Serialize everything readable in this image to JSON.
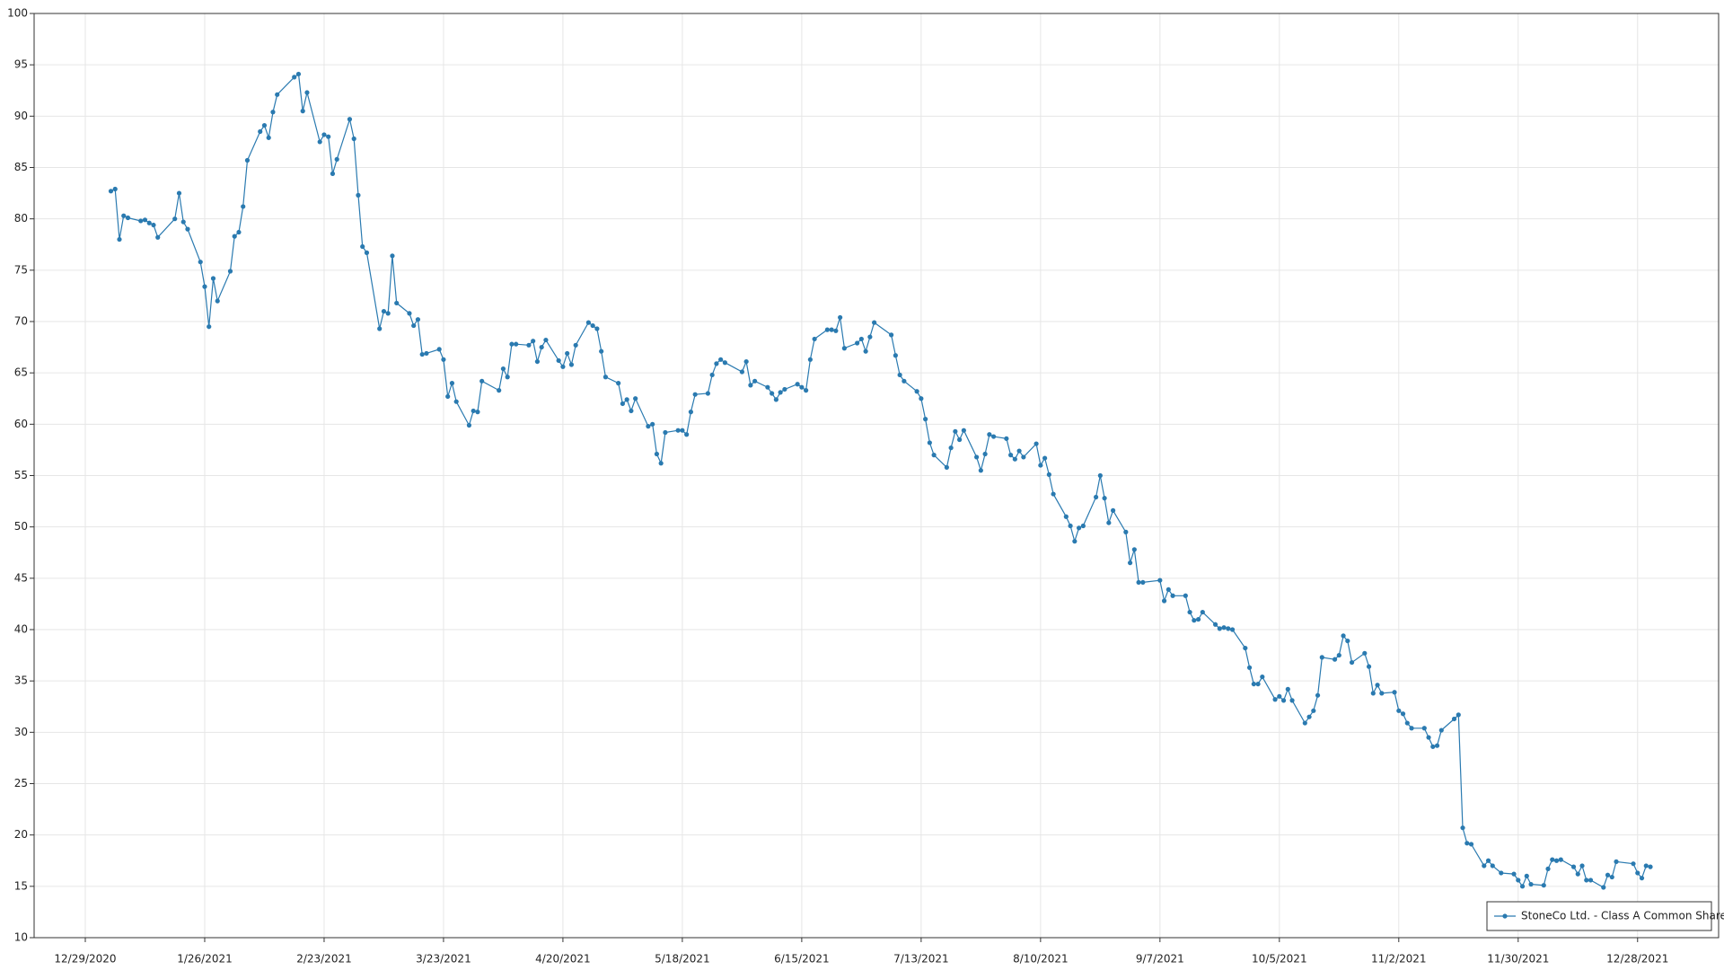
{
  "chart_data": {
    "type": "line",
    "series": [
      {
        "name": "StoneCo Ltd. - Class A Common Share",
        "color": "#2a7ab0",
        "values": [
          82.7,
          82.9,
          78.0,
          80.3,
          80.1,
          79.8,
          79.9,
          79.6,
          79.4,
          78.2,
          80.0,
          82.5,
          79.7,
          79.0,
          75.8,
          73.4,
          69.5,
          74.2,
          72.0,
          74.9,
          78.3,
          78.7,
          81.2,
          85.7,
          88.5,
          89.1,
          87.9,
          90.4,
          92.1,
          93.8,
          94.1,
          90.5,
          92.3,
          87.5,
          88.2,
          88.0,
          84.4,
          85.8,
          89.7,
          87.8,
          82.3,
          77.3,
          76.7,
          69.3,
          71.0,
          70.8,
          76.4,
          71.8,
          70.8,
          69.6,
          70.2,
          66.8,
          66.9,
          67.3,
          66.3,
          62.7,
          64.0,
          62.2,
          59.9,
          61.3,
          61.2,
          64.2,
          63.3,
          65.4,
          64.6,
          67.8,
          67.8,
          67.7,
          68.1,
          66.1,
          67.5,
          68.2,
          66.2,
          65.6,
          66.9,
          65.8,
          67.7,
          69.9,
          69.6,
          69.3,
          67.1,
          64.6,
          64.0,
          62.0,
          62.4,
          61.3,
          62.5,
          59.8,
          60.0,
          57.1,
          56.2,
          59.2,
          59.4,
          59.4,
          59.0,
          61.2,
          62.9,
          63.0,
          64.8,
          65.9,
          66.3,
          66.0,
          65.1,
          66.1,
          63.8,
          64.2,
          63.6,
          63.0,
          62.4,
          63.1,
          63.4,
          63.9,
          63.6,
          63.3,
          66.3,
          68.3,
          69.2,
          69.2,
          69.1,
          70.4,
          67.4,
          67.9,
          68.3,
          67.1,
          68.5,
          69.9,
          68.7,
          66.7,
          64.8,
          64.2,
          63.2,
          62.5,
          60.5,
          58.2,
          57.0,
          55.8,
          57.7,
          59.3,
          58.5,
          59.4,
          56.8,
          55.5,
          57.1,
          59.0,
          58.8,
          58.6,
          57.0,
          56.6,
          57.4,
          56.8,
          58.1,
          56.0,
          56.7,
          55.1,
          53.2,
          51.0,
          50.1,
          48.6,
          49.9,
          50.1,
          52.9,
          55.0,
          52.8,
          50.4,
          51.6,
          49.5,
          46.5,
          47.8,
          44.6,
          44.6,
          44.8,
          42.8,
          43.9,
          43.3,
          43.3,
          41.7,
          40.9,
          41.0,
          41.7,
          40.5,
          40.1,
          40.2,
          40.1,
          40.0,
          38.2,
          36.3,
          34.7,
          34.7,
          35.4,
          33.2,
          33.5,
          33.1,
          34.2,
          33.1,
          30.9,
          31.5,
          32.1,
          33.6,
          37.3,
          37.1,
          37.5,
          39.4,
          38.9,
          36.8,
          37.7,
          36.4,
          33.8,
          34.6,
          33.8,
          33.9,
          32.1,
          31.8,
          30.9,
          30.4,
          30.4,
          29.5,
          28.6,
          28.7,
          30.2,
          31.3,
          31.7,
          20.7,
          19.2,
          19.1,
          17.0,
          17.5,
          17.0,
          16.3,
          16.2,
          15.6,
          15.0,
          16.0,
          15.2,
          15.1,
          16.7,
          17.6,
          17.5,
          17.6,
          16.9,
          16.2,
          17.0,
          15.6,
          15.6,
          14.9,
          16.1,
          15.9,
          17.4,
          17.2,
          16.3,
          15.8,
          17.0,
          16.9
        ]
      }
    ],
    "x": [
      "1/4/2021",
      "1/5/2021",
      "1/6/2021",
      "1/7/2021",
      "1/8/2021",
      "1/11/2021",
      "1/12/2021",
      "1/13/2021",
      "1/14/2021",
      "1/15/2021",
      "1/19/2021",
      "1/20/2021",
      "1/21/2021",
      "1/22/2021",
      "1/25/2021",
      "1/26/2021",
      "1/27/2021",
      "1/28/2021",
      "1/29/2021",
      "2/1/2021",
      "2/2/2021",
      "2/3/2021",
      "2/4/2021",
      "2/5/2021",
      "2/8/2021",
      "2/9/2021",
      "2/10/2021",
      "2/11/2021",
      "2/12/2021",
      "2/16/2021",
      "2/17/2021",
      "2/18/2021",
      "2/19/2021",
      "2/22/2021",
      "2/23/2021",
      "2/24/2021",
      "2/25/2021",
      "2/26/2021",
      "3/1/2021",
      "3/2/2021",
      "3/3/2021",
      "3/4/2021",
      "3/5/2021",
      "3/8/2021",
      "3/9/2021",
      "3/10/2021",
      "3/11/2021",
      "3/12/2021",
      "3/15/2021",
      "3/16/2021",
      "3/17/2021",
      "3/18/2021",
      "3/19/2021",
      "3/22/2021",
      "3/23/2021",
      "3/24/2021",
      "3/25/2021",
      "3/26/2021",
      "3/29/2021",
      "3/30/2021",
      "3/31/2021",
      "4/1/2021",
      "4/5/2021",
      "4/6/2021",
      "4/7/2021",
      "4/8/2021",
      "4/9/2021",
      "4/12/2021",
      "4/13/2021",
      "4/14/2021",
      "4/15/2021",
      "4/16/2021",
      "4/19/2021",
      "4/20/2021",
      "4/21/2021",
      "4/22/2021",
      "4/23/2021",
      "4/26/2021",
      "4/27/2021",
      "4/28/2021",
      "4/29/2021",
      "4/30/2021",
      "5/3/2021",
      "5/4/2021",
      "5/5/2021",
      "5/6/2021",
      "5/7/2021",
      "5/10/2021",
      "5/11/2021",
      "5/12/2021",
      "5/13/2021",
      "5/14/2021",
      "5/17/2021",
      "5/18/2021",
      "5/19/2021",
      "5/20/2021",
      "5/21/2021",
      "5/24/2021",
      "5/25/2021",
      "5/26/2021",
      "5/27/2021",
      "5/28/2021",
      "6/1/2021",
      "6/2/2021",
      "6/3/2021",
      "6/4/2021",
      "6/7/2021",
      "6/8/2021",
      "6/9/2021",
      "6/10/2021",
      "6/11/2021",
      "6/14/2021",
      "6/15/2021",
      "6/16/2021",
      "6/17/2021",
      "6/18/2021",
      "6/21/2021",
      "6/22/2021",
      "6/23/2021",
      "6/24/2021",
      "6/25/2021",
      "6/28/2021",
      "6/29/2021",
      "6/30/2021",
      "7/1/2021",
      "7/2/2021",
      "7/6/2021",
      "7/7/2021",
      "7/8/2021",
      "7/9/2021",
      "7/12/2021",
      "7/13/2021",
      "7/14/2021",
      "7/15/2021",
      "7/16/2021",
      "7/19/2021",
      "7/20/2021",
      "7/21/2021",
      "7/22/2021",
      "7/23/2021",
      "7/26/2021",
      "7/27/2021",
      "7/28/2021",
      "7/29/2021",
      "7/30/2021",
      "8/2/2021",
      "8/3/2021",
      "8/4/2021",
      "8/5/2021",
      "8/6/2021",
      "8/9/2021",
      "8/10/2021",
      "8/11/2021",
      "8/12/2021",
      "8/13/2021",
      "8/16/2021",
      "8/17/2021",
      "8/18/2021",
      "8/19/2021",
      "8/20/2021",
      "8/23/2021",
      "8/24/2021",
      "8/25/2021",
      "8/26/2021",
      "8/27/2021",
      "8/30/2021",
      "8/31/2021",
      "9/1/2021",
      "9/2/2021",
      "9/3/2021",
      "9/7/2021",
      "9/8/2021",
      "9/9/2021",
      "9/10/2021",
      "9/13/2021",
      "9/14/2021",
      "9/15/2021",
      "9/16/2021",
      "9/17/2021",
      "9/20/2021",
      "9/21/2021",
      "9/22/2021",
      "9/23/2021",
      "9/24/2021",
      "9/27/2021",
      "9/28/2021",
      "9/29/2021",
      "9/30/2021",
      "10/1/2021",
      "10/4/2021",
      "10/5/2021",
      "10/6/2021",
      "10/7/2021",
      "10/8/2021",
      "10/11/2021",
      "10/12/2021",
      "10/13/2021",
      "10/14/2021",
      "10/15/2021",
      "10/18/2021",
      "10/19/2021",
      "10/20/2021",
      "10/21/2021",
      "10/22/2021",
      "10/25/2021",
      "10/26/2021",
      "10/27/2021",
      "10/28/2021",
      "10/29/2021",
      "11/1/2021",
      "11/2/2021",
      "11/3/2021",
      "11/4/2021",
      "11/5/2021",
      "11/8/2021",
      "11/9/2021",
      "11/10/2021",
      "11/11/2021",
      "11/12/2021",
      "11/15/2021",
      "11/16/2021",
      "11/17/2021",
      "11/18/2021",
      "11/19/2021",
      "11/22/2021",
      "11/23/2021",
      "11/24/2021",
      "11/26/2021",
      "11/29/2021",
      "11/30/2021",
      "12/1/2021",
      "12/2/2021",
      "12/3/2021",
      "12/6/2021",
      "12/7/2021",
      "12/8/2021",
      "12/9/2021",
      "12/10/2021",
      "12/13/2021",
      "12/14/2021",
      "12/15/2021",
      "12/16/2021",
      "12/17/2021",
      "12/20/2021",
      "12/21/2021",
      "12/22/2021",
      "12/23/2021",
      "12/27/2021",
      "12/28/2021",
      "12/29/2021",
      "12/30/2021",
      "12/31/2021"
    ],
    "xlim": [
      "12/17/2020",
      "1/16/2022"
    ],
    "xticks": [
      "12/29/2020",
      "1/26/2021",
      "2/23/2021",
      "3/23/2021",
      "4/20/2021",
      "5/18/2021",
      "6/15/2021",
      "7/13/2021",
      "8/10/2021",
      "9/7/2021",
      "10/5/2021",
      "11/2/2021",
      "11/30/2021",
      "12/28/2021"
    ],
    "ylim": [
      10,
      100
    ],
    "yticks": [
      10,
      15,
      20,
      25,
      30,
      35,
      40,
      45,
      50,
      55,
      60,
      65,
      70,
      75,
      80,
      85,
      90,
      95,
      100
    ],
    "grid": true,
    "legend": "lower right"
  }
}
